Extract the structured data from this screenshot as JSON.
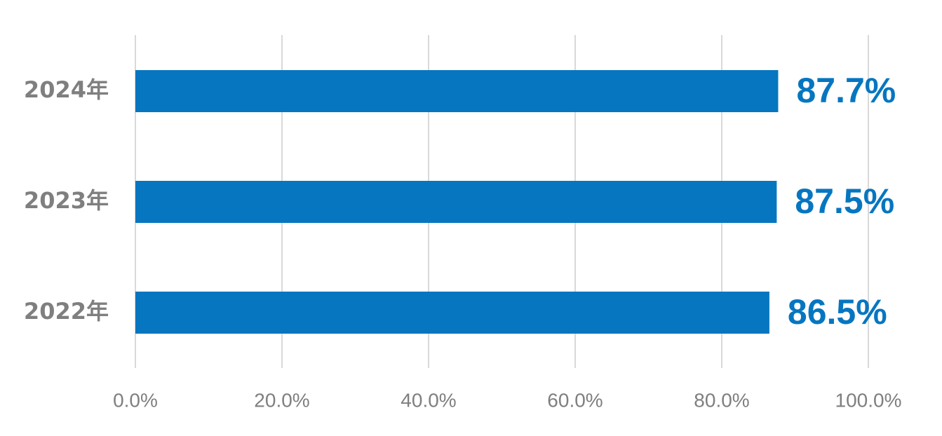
{
  "chart_data": {
    "type": "bar",
    "orientation": "horizontal",
    "categories": [
      "2024年",
      "2023年",
      "2022年"
    ],
    "values": [
      87.7,
      87.5,
      86.5
    ],
    "value_labels": [
      "87.7%",
      "87.5%",
      "86.5%"
    ],
    "color": "#0676c0",
    "xlim": [
      0,
      100
    ],
    "xticks": [
      {
        "value": 0,
        "label": "0.0%"
      },
      {
        "value": 20,
        "label": "20.0%"
      },
      {
        "value": 40,
        "label": "40.0%"
      },
      {
        "value": 60,
        "label": "60.0%"
      },
      {
        "value": 80,
        "label": "80.0%"
      },
      {
        "value": 100,
        "label": "100.0%"
      }
    ],
    "grid": true
  }
}
